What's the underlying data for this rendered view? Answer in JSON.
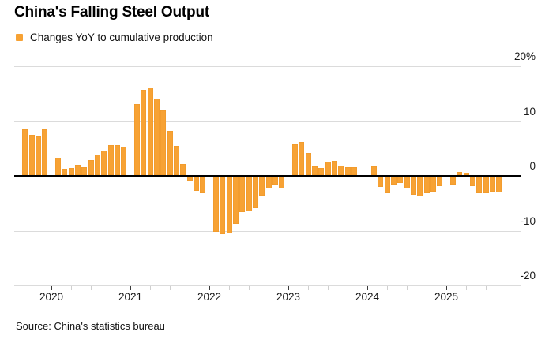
{
  "header": {
    "title": "China's Falling Steel Output",
    "legend_label": "Changes YoY to cumulative production"
  },
  "footer": {
    "source": "Source: China's statistics bureau"
  },
  "colors": {
    "bar": "#F7A234",
    "bar_edge": "#EE9727",
    "grid": "#DBDBDB",
    "zero_line": "#000000",
    "axis_line": "#DBDBDB",
    "tick_major": "#3a3a3a",
    "tick_minor": "#cfcfcf",
    "background": "#ffffff"
  },
  "chart_data": {
    "type": "bar",
    "title": "China's Falling Steel Output",
    "legend": [
      "Changes YoY to cumulative production"
    ],
    "legend_position": "top-left",
    "unit": "%",
    "grid": "on",
    "ylim": [
      -20,
      20
    ],
    "yticks": [
      {
        "value": 20,
        "label": "20%"
      },
      {
        "value": 10,
        "label": "10"
      },
      {
        "value": 0,
        "label": "0"
      },
      {
        "value": -10,
        "label": "-10"
      },
      {
        "value": -20,
        "label": "-20"
      }
    ],
    "xticks_major": [
      {
        "year": 2020,
        "label": "2020"
      },
      {
        "year": 2021,
        "label": "2021"
      },
      {
        "year": 2022,
        "label": "2022"
      },
      {
        "year": 2023,
        "label": "2023"
      },
      {
        "year": 2024,
        "label": "2024"
      },
      {
        "year": 2025,
        "label": "2025"
      }
    ],
    "series": [
      {
        "name": "Changes YoY to cumulative production",
        "points_columns": [
          "year",
          "month",
          "value_pct"
        ],
        "points": [
          [
            2019,
            9,
            8.4
          ],
          [
            2019,
            10,
            7.4
          ],
          [
            2019,
            11,
            7.0
          ],
          [
            2019,
            12,
            8.3
          ],
          [
            2020,
            2,
            3.1
          ],
          [
            2020,
            3,
            1.2
          ],
          [
            2020,
            4,
            1.3
          ],
          [
            2020,
            5,
            1.9
          ],
          [
            2020,
            6,
            1.4
          ],
          [
            2020,
            7,
            2.8
          ],
          [
            2020,
            8,
            3.7
          ],
          [
            2020,
            9,
            4.5
          ],
          [
            2020,
            10,
            5.5
          ],
          [
            2020,
            11,
            5.5
          ],
          [
            2020,
            12,
            5.2
          ],
          [
            2021,
            2,
            12.9
          ],
          [
            2021,
            3,
            15.6
          ],
          [
            2021,
            4,
            16.0
          ],
          [
            2021,
            5,
            13.9
          ],
          [
            2021,
            6,
            11.8
          ],
          [
            2021,
            7,
            8.0
          ],
          [
            2021,
            8,
            5.3
          ],
          [
            2021,
            9,
            2.0
          ],
          [
            2021,
            10,
            -0.7
          ],
          [
            2021,
            11,
            -2.6
          ],
          [
            2021,
            12,
            -3.0
          ],
          [
            2022,
            2,
            -10.0
          ],
          [
            2022,
            3,
            -10.5
          ],
          [
            2022,
            4,
            -10.3
          ],
          [
            2022,
            5,
            -8.7
          ],
          [
            2022,
            6,
            -6.5
          ],
          [
            2022,
            7,
            -6.4
          ],
          [
            2022,
            8,
            -5.7
          ],
          [
            2022,
            9,
            -3.4
          ],
          [
            2022,
            10,
            -2.2
          ],
          [
            2022,
            11,
            -1.4
          ],
          [
            2022,
            12,
            -2.1
          ],
          [
            2023,
            2,
            5.6
          ],
          [
            2023,
            3,
            6.1
          ],
          [
            2023,
            4,
            4.1
          ],
          [
            2023,
            5,
            1.6
          ],
          [
            2023,
            6,
            1.3
          ],
          [
            2023,
            7,
            2.5
          ],
          [
            2023,
            8,
            2.6
          ],
          [
            2023,
            9,
            1.7
          ],
          [
            2023,
            10,
            1.4
          ],
          [
            2023,
            11,
            1.5
          ],
          [
            2023,
            12,
            0.0
          ],
          [
            2024,
            2,
            1.6
          ],
          [
            2024,
            3,
            -1.9
          ],
          [
            2024,
            4,
            -3.0
          ],
          [
            2024,
            5,
            -1.4
          ],
          [
            2024,
            6,
            -1.1
          ],
          [
            2024,
            7,
            -2.2
          ],
          [
            2024,
            8,
            -3.3
          ],
          [
            2024,
            9,
            -3.6
          ],
          [
            2024,
            10,
            -3.0
          ],
          [
            2024,
            11,
            -2.7
          ],
          [
            2024,
            12,
            -1.7
          ],
          [
            2025,
            2,
            -1.5
          ],
          [
            2025,
            3,
            0.6
          ],
          [
            2025,
            4,
            0.4
          ],
          [
            2025,
            5,
            -1.7
          ],
          [
            2025,
            6,
            -3.0
          ],
          [
            2025,
            7,
            -3.0
          ],
          [
            2025,
            8,
            -2.8
          ],
          [
            2025,
            9,
            -2.9
          ]
        ]
      }
    ]
  }
}
